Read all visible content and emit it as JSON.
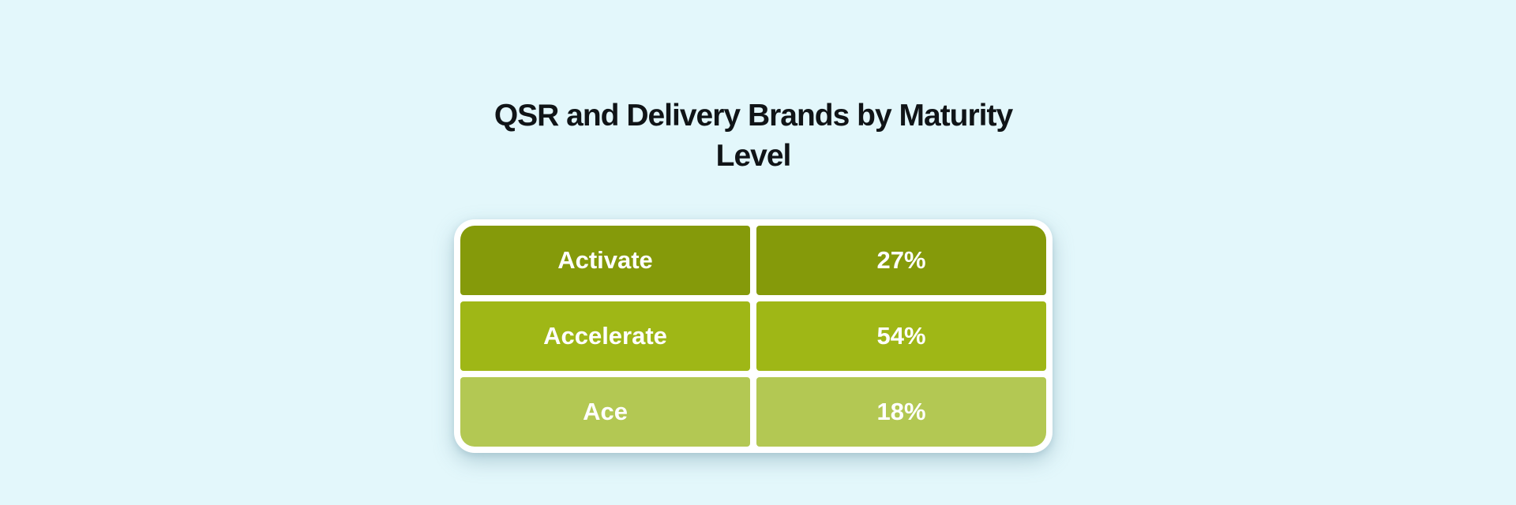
{
  "page": {
    "background": "#e3f7fb"
  },
  "chart_data": {
    "type": "table",
    "title": "QSR and Delivery Brands by Maturity Level",
    "title_color": "#101417",
    "card_background": "#ffffff",
    "cell_text_color": "#ffffff",
    "categories": [
      "Activate",
      "Accelerate",
      "Ace"
    ],
    "values": [
      27,
      54,
      18
    ],
    "value_labels": [
      "27%",
      "54%",
      "18%"
    ],
    "rows": [
      {
        "label": "Activate",
        "value": "27%",
        "color": "#859a0a"
      },
      {
        "label": "Accelerate",
        "value": "54%",
        "color": "#9fb716"
      },
      {
        "label": "Ace",
        "value": "18%",
        "color": "#b3c853"
      }
    ]
  }
}
